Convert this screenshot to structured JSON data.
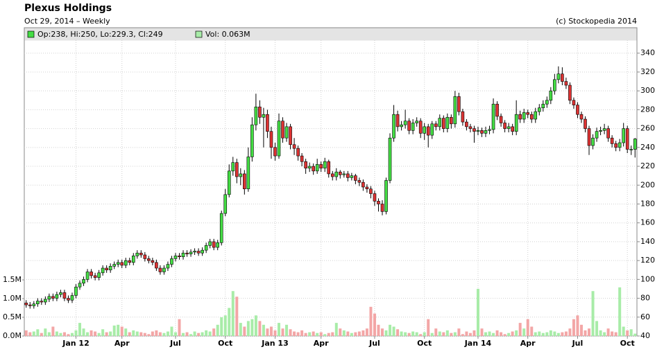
{
  "chart_data": {
    "type": "candlestick",
    "title": "Plexus Holdings",
    "subtitle": "Oct 29, 2014 – Weekly",
    "credit": "(c) Stockopedia 2014",
    "legend": {
      "price": "Op:238, Hi:250, Lo:229.3, Cl:249",
      "volume": "Vol: 0.063M"
    },
    "categories": [
      null,
      null,
      null,
      null,
      null,
      null,
      null,
      null,
      null,
      null,
      null,
      null,
      null,
      "Jan 12",
      null,
      null,
      null,
      null,
      null,
      null,
      null,
      null,
      null,
      null,
      null,
      "Apr",
      null,
      null,
      null,
      null,
      null,
      null,
      null,
      null,
      null,
      null,
      null,
      null,
      null,
      "Jul",
      null,
      null,
      null,
      null,
      null,
      null,
      null,
      null,
      null,
      null,
      null,
      null,
      "Oct",
      null,
      null,
      null,
      null,
      null,
      null,
      null,
      null,
      null,
      null,
      null,
      null,
      "Jan 13",
      null,
      null,
      null,
      null,
      null,
      null,
      null,
      null,
      null,
      null,
      null,
      "Apr",
      null,
      null,
      null,
      null,
      null,
      null,
      null,
      null,
      null,
      null,
      null,
      null,
      null,
      "Jul",
      null,
      null,
      null,
      null,
      null,
      null,
      null,
      null,
      null,
      null,
      null,
      null,
      "Oct",
      null,
      null,
      null,
      null,
      null,
      null,
      null,
      null,
      null,
      null,
      null,
      null,
      null,
      "Jan 14",
      null,
      null,
      null,
      null,
      null,
      null,
      null,
      null,
      null,
      null,
      null,
      null,
      "Apr",
      null,
      null,
      null,
      null,
      null,
      null,
      null,
      null,
      null,
      null,
      null,
      null,
      "Jul",
      null,
      null,
      null,
      null,
      null,
      null,
      null,
      null,
      null,
      null,
      null,
      null,
      "Oct",
      null,
      null
    ],
    "open": [
      75,
      73,
      72,
      74,
      77,
      76,
      79,
      82,
      80,
      84,
      86,
      80,
      78,
      83,
      92,
      96,
      100,
      108,
      104,
      102,
      107,
      112,
      110,
      114,
      116,
      118,
      115,
      120,
      118,
      125,
      128,
      126,
      122,
      120,
      118,
      112,
      108,
      112,
      116,
      122,
      125,
      124,
      128,
      127,
      129,
      130,
      128,
      131,
      136,
      140,
      134,
      139,
      170,
      190,
      215,
      224,
      209,
      212,
      196,
      230,
      264,
      283,
      272,
      275,
      257,
      240,
      231,
      268,
      250,
      262,
      243,
      239,
      231,
      225,
      218,
      220,
      215,
      222,
      218,
      225,
      212,
      209,
      214,
      211,
      212,
      208,
      210,
      205,
      203,
      198,
      196,
      191,
      183,
      180,
      172,
      205,
      250,
      275,
      262,
      264,
      268,
      258,
      266,
      268,
      255,
      262,
      253,
      265,
      262,
      271,
      260,
      272,
      265,
      294,
      278,
      267,
      262,
      260,
      257,
      258,
      255,
      258,
      259,
      286,
      273,
      266,
      260,
      262,
      257,
      275,
      270,
      277,
      275,
      270,
      278,
      282,
      286,
      290,
      300,
      312,
      318,
      310,
      306,
      290,
      285,
      275,
      270,
      260,
      242,
      250,
      257,
      258,
      260,
      250,
      244,
      240,
      245,
      260,
      238,
      238
    ],
    "high": [
      78,
      76,
      77,
      80,
      80,
      82,
      85,
      85,
      87,
      89,
      89,
      83,
      86,
      95,
      99,
      103,
      111,
      111,
      107,
      110,
      115,
      115,
      117,
      119,
      121,
      121,
      123,
      123,
      128,
      131,
      131,
      129,
      125,
      123,
      121,
      115,
      115,
      119,
      125,
      128,
      128,
      131,
      131,
      132,
      133,
      133,
      134,
      139,
      143,
      143,
      142,
      173,
      196,
      222,
      230,
      228,
      218,
      216,
      240,
      272,
      297,
      290,
      282,
      280,
      262,
      245,
      276,
      272,
      266,
      265,
      250,
      242,
      234,
      228,
      224,
      223,
      228,
      225,
      229,
      227,
      215,
      218,
      216,
      215,
      215,
      213,
      212,
      208,
      206,
      201,
      199,
      194,
      186,
      184,
      208,
      255,
      285,
      279,
      268,
      280,
      271,
      270,
      272,
      271,
      266,
      265,
      268,
      268,
      275,
      274,
      276,
      275,
      300,
      298,
      281,
      270,
      265,
      263,
      262,
      261,
      262,
      263,
      292,
      289,
      276,
      269,
      266,
      265,
      290,
      279,
      281,
      280,
      278,
      282,
      286,
      290,
      294,
      304,
      318,
      326,
      325,
      314,
      309,
      293,
      288,
      278,
      273,
      263,
      254,
      261,
      262,
      265,
      263,
      253,
      247,
      249,
      266,
      263,
      242,
      250
    ],
    "low": [
      70,
      69,
      69,
      71,
      73,
      73,
      76,
      77,
      77,
      81,
      77,
      75,
      75,
      80,
      89,
      93,
      97,
      101,
      99,
      99,
      104,
      107,
      107,
      111,
      113,
      112,
      112,
      115,
      115,
      122,
      123,
      119,
      117,
      115,
      109,
      105,
      105,
      109,
      113,
      119,
      121,
      121,
      124,
      124,
      126,
      125,
      125,
      128,
      133,
      131,
      131,
      136,
      167,
      187,
      210,
      202,
      200,
      190,
      193,
      225,
      258,
      265,
      240,
      250,
      228,
      226,
      228,
      245,
      246,
      238,
      232,
      226,
      220,
      212,
      214,
      211,
      212,
      214,
      214,
      208,
      205,
      205,
      207,
      208,
      204,
      205,
      201,
      199,
      194,
      192,
      186,
      178,
      172,
      168,
      169,
      202,
      246,
      257,
      258,
      260,
      254,
      254,
      262,
      250,
      248,
      240,
      249,
      258,
      258,
      256,
      256,
      260,
      261,
      274,
      263,
      258,
      256,
      245,
      253,
      251,
      251,
      254,
      255,
      269,
      262,
      256,
      256,
      253,
      253,
      266,
      266,
      271,
      266,
      266,
      274,
      278,
      282,
      286,
      296,
      308,
      306,
      302,
      286,
      281,
      271,
      266,
      256,
      232,
      238,
      246,
      253,
      254,
      246,
      240,
      236,
      236,
      241,
      234,
      232,
      229.3
    ],
    "close": [
      73,
      72,
      74,
      77,
      76,
      79,
      82,
      80,
      84,
      86,
      80,
      78,
      83,
      92,
      96,
      100,
      108,
      104,
      102,
      107,
      112,
      110,
      114,
      116,
      118,
      115,
      120,
      118,
      125,
      128,
      126,
      122,
      120,
      118,
      112,
      108,
      112,
      116,
      122,
      125,
      124,
      128,
      127,
      129,
      130,
      128,
      131,
      136,
      140,
      134,
      139,
      170,
      190,
      215,
      224,
      209,
      212,
      196,
      230,
      264,
      283,
      272,
      275,
      257,
      240,
      231,
      268,
      250,
      262,
      243,
      239,
      231,
      225,
      218,
      220,
      215,
      222,
      218,
      225,
      212,
      209,
      214,
      211,
      212,
      208,
      210,
      205,
      203,
      198,
      196,
      191,
      183,
      180,
      172,
      205,
      250,
      275,
      262,
      264,
      268,
      258,
      266,
      268,
      255,
      262,
      253,
      265,
      262,
      271,
      260,
      272,
      265,
      294,
      278,
      267,
      262,
      260,
      257,
      258,
      255,
      258,
      259,
      286,
      273,
      266,
      260,
      262,
      257,
      275,
      270,
      277,
      275,
      270,
      278,
      282,
      286,
      290,
      300,
      312,
      318,
      310,
      306,
      290,
      285,
      275,
      270,
      260,
      242,
      250,
      257,
      258,
      260,
      250,
      244,
      240,
      245,
      260,
      238,
      238,
      249
    ],
    "volume": [
      0.15,
      0.1,
      0.12,
      0.18,
      0.08,
      0.2,
      0.1,
      0.25,
      0.12,
      0.08,
      0.1,
      0.05,
      0.08,
      0.15,
      0.35,
      0.2,
      0.1,
      0.15,
      0.12,
      0.08,
      0.18,
      0.1,
      0.12,
      0.28,
      0.3,
      0.25,
      0.2,
      0.1,
      0.15,
      0.12,
      0.1,
      0.08,
      0.05,
      0.12,
      0.15,
      0.1,
      0.08,
      0.12,
      0.25,
      0.1,
      0.45,
      0.08,
      0.1,
      0.05,
      0.12,
      0.08,
      0.1,
      0.15,
      0.12,
      0.2,
      0.3,
      0.5,
      0.55,
      0.75,
      1.2,
      1.05,
      0.35,
      0.25,
      0.4,
      0.45,
      0.55,
      0.4,
      0.3,
      0.2,
      0.25,
      0.15,
      0.35,
      0.2,
      0.3,
      0.18,
      0.12,
      0.1,
      0.15,
      0.08,
      0.1,
      0.12,
      0.08,
      0.1,
      0.05,
      0.08,
      0.1,
      0.35,
      0.2,
      0.15,
      0.12,
      0.08,
      0.1,
      0.12,
      0.15,
      0.2,
      0.78,
      0.6,
      0.3,
      0.2,
      0.15,
      0.3,
      0.25,
      0.18,
      0.12,
      0.1,
      0.08,
      0.12,
      0.1,
      0.05,
      0.1,
      0.45,
      0.08,
      0.2,
      0.12,
      0.1,
      0.15,
      0.08,
      0.1,
      0.2,
      0.05,
      0.12,
      0.08,
      0.15,
      1.26,
      0.2,
      0.1,
      0.12,
      0.08,
      0.15,
      0.1,
      0.05,
      0.08,
      0.12,
      0.15,
      0.35,
      0.2,
      0.45,
      0.25,
      0.1,
      0.12,
      0.08,
      0.1,
      0.15,
      0.12,
      0.08,
      0.1,
      0.12,
      0.2,
      0.45,
      0.55,
      0.3,
      0.15,
      0.2,
      1.2,
      0.4,
      0.15,
      0.1,
      0.2,
      0.12,
      0.1,
      1.3,
      0.25,
      0.15,
      0.18,
      0.063
    ],
    "up_color": "#44dd44",
    "down_color": "#dd3333",
    "volume_up_color": "#a8eca8",
    "volume_down_color": "#f3a6a6",
    "ylim": [
      40,
      367
    ],
    "yticks": [
      40,
      60,
      80,
      100,
      120,
      140,
      160,
      180,
      200,
      220,
      240,
      260,
      280,
      300,
      320,
      340
    ],
    "y2lim": [
      0,
      8.24
    ],
    "y2ticks": [
      {
        "value": 0,
        "label": "0.0M"
      },
      {
        "value": 0.5,
        "label": "0.5M"
      },
      {
        "value": 1,
        "label": "1.0M"
      },
      {
        "value": 1.5,
        "label": "1.5M"
      }
    ],
    "grid": true
  }
}
